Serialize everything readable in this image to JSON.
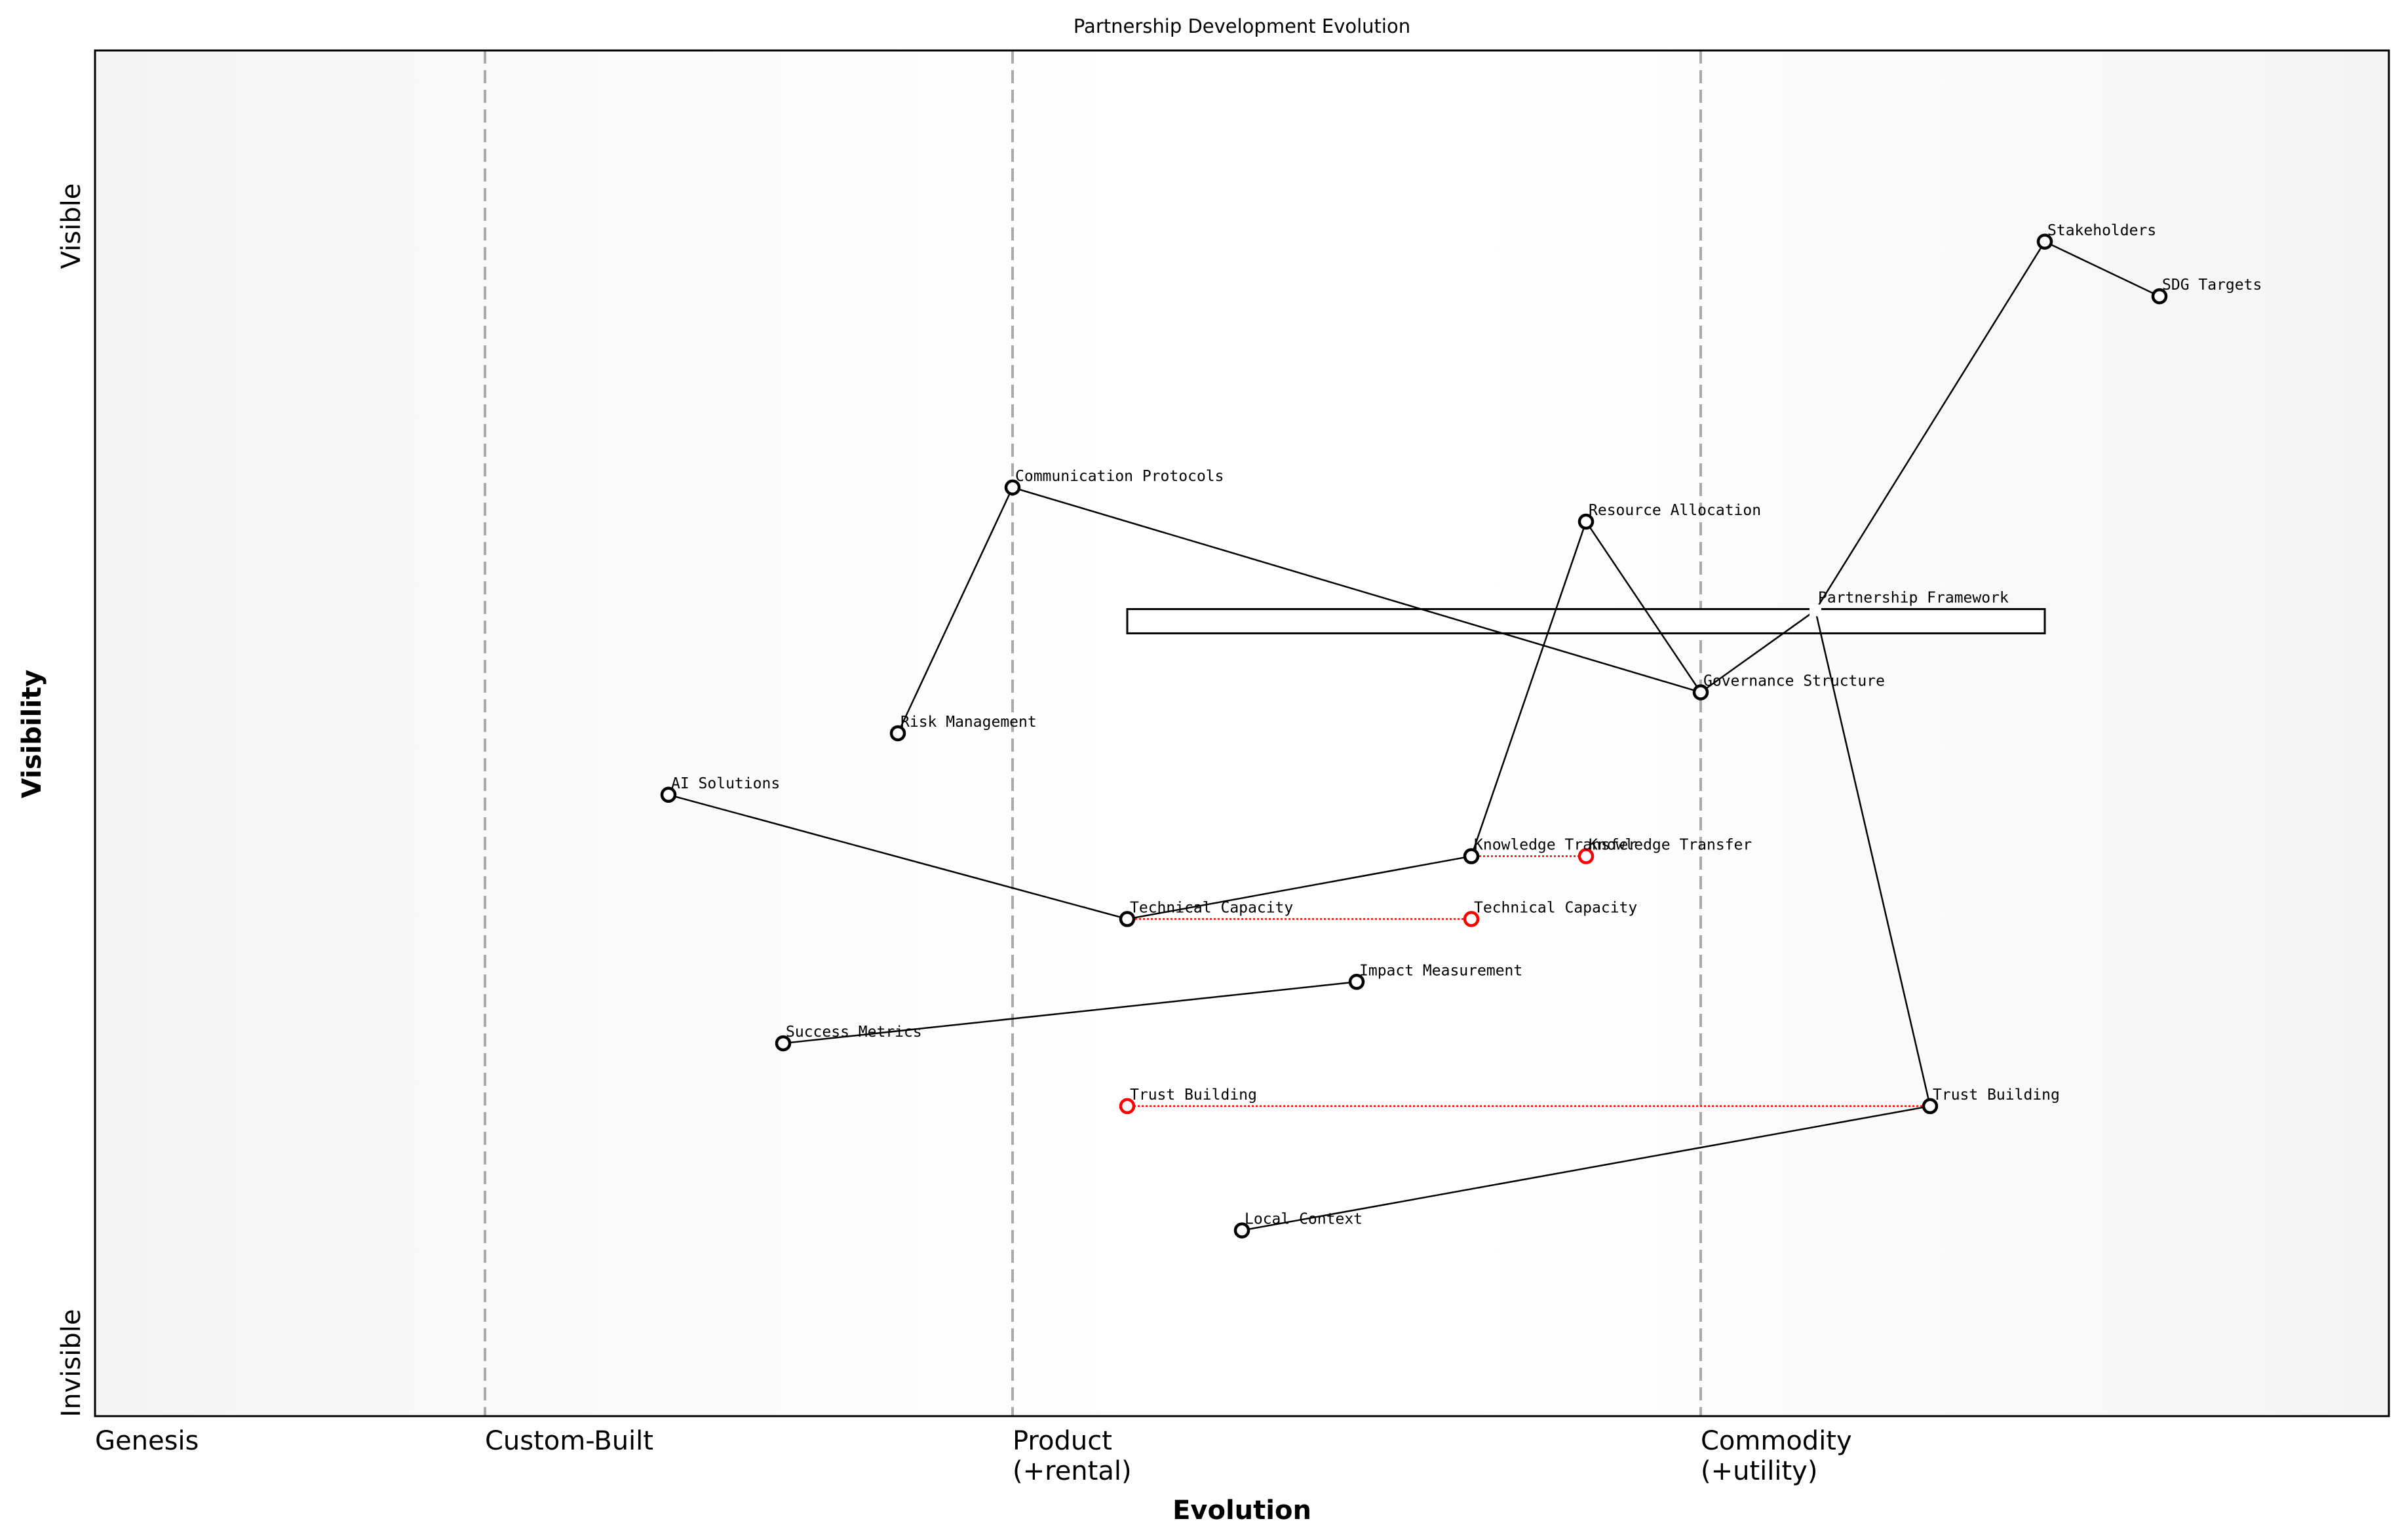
{
  "title": "Partnership Development Evolution",
  "axes": {
    "xlabel": "Evolution",
    "ylabel": "Visibility",
    "y_top_label": "Visible",
    "y_bottom_label": "Invisible",
    "stages": [
      {
        "label": "Genesis",
        "line2": "",
        "evolution": 0.0,
        "divider": false
      },
      {
        "label": "Custom-Built",
        "line2": "",
        "evolution": 0.17,
        "divider": true
      },
      {
        "label": "Product",
        "line2": "(+rental)",
        "evolution": 0.4,
        "divider": true
      },
      {
        "label": "Commodity",
        "line2": "(+utility)",
        "evolution": 0.7,
        "divider": true
      }
    ]
  },
  "colors": {
    "node": "#000000",
    "evolved": "#ff0000",
    "divider": "#aaaaaa",
    "background_edge": "#f4f4f4"
  },
  "components": [
    {
      "id": "stakeholders",
      "label": "Stakeholders",
      "evolution": 0.85,
      "visibility": 0.86
    },
    {
      "id": "sdg",
      "label": "SDG Targets",
      "evolution": 0.9,
      "visibility": 0.82
    },
    {
      "id": "comm",
      "label": "Communication Protocols",
      "evolution": 0.4,
      "visibility": 0.68
    },
    {
      "id": "resource",
      "label": "Resource Allocation",
      "evolution": 0.65,
      "visibility": 0.655
    },
    {
      "id": "framework",
      "label": "Partnership Framework",
      "evolution": 0.75,
      "visibility": 0.59,
      "marker": "square"
    },
    {
      "id": "governance",
      "label": "Governance Structure",
      "evolution": 0.7,
      "visibility": 0.53
    },
    {
      "id": "risk",
      "label": "Risk Management",
      "evolution": 0.35,
      "visibility": 0.5
    },
    {
      "id": "ai",
      "label": "AI Solutions",
      "evolution": 0.25,
      "visibility": 0.455
    },
    {
      "id": "knowledge",
      "label": "Knowledge Transfer",
      "evolution": 0.6,
      "visibility": 0.41
    },
    {
      "id": "technical",
      "label": "Technical Capacity",
      "evolution": 0.45,
      "visibility": 0.364
    },
    {
      "id": "impact",
      "label": "Impact Measurement",
      "evolution": 0.55,
      "visibility": 0.318
    },
    {
      "id": "success",
      "label": "Success Metrics",
      "evolution": 0.3,
      "visibility": 0.273
    },
    {
      "id": "trust",
      "label": "Trust Building",
      "evolution": 0.8,
      "visibility": 0.227
    },
    {
      "id": "local",
      "label": "Local Context",
      "evolution": 0.5,
      "visibility": 0.136
    }
  ],
  "links": [
    [
      "stakeholders",
      "sdg"
    ],
    [
      "stakeholders",
      "framework"
    ],
    [
      "framework",
      "governance"
    ],
    [
      "framework",
      "trust"
    ],
    [
      "governance",
      "resource"
    ],
    [
      "governance",
      "comm"
    ],
    [
      "comm",
      "risk"
    ],
    [
      "resource",
      "knowledge"
    ],
    [
      "knowledge",
      "technical"
    ],
    [
      "technical",
      "ai"
    ],
    [
      "impact",
      "success"
    ],
    [
      "trust",
      "local"
    ]
  ],
  "evolutions": [
    {
      "id": "knowledge",
      "label": "Knowledge Transfer",
      "to": 0.65
    },
    {
      "id": "technical",
      "label": "Technical Capacity",
      "to": 0.6
    },
    {
      "id": "trust",
      "label": "Trust Building",
      "to": 0.45
    }
  ],
  "pipeline": {
    "component": "framework",
    "start": 0.45,
    "end": 0.85
  }
}
